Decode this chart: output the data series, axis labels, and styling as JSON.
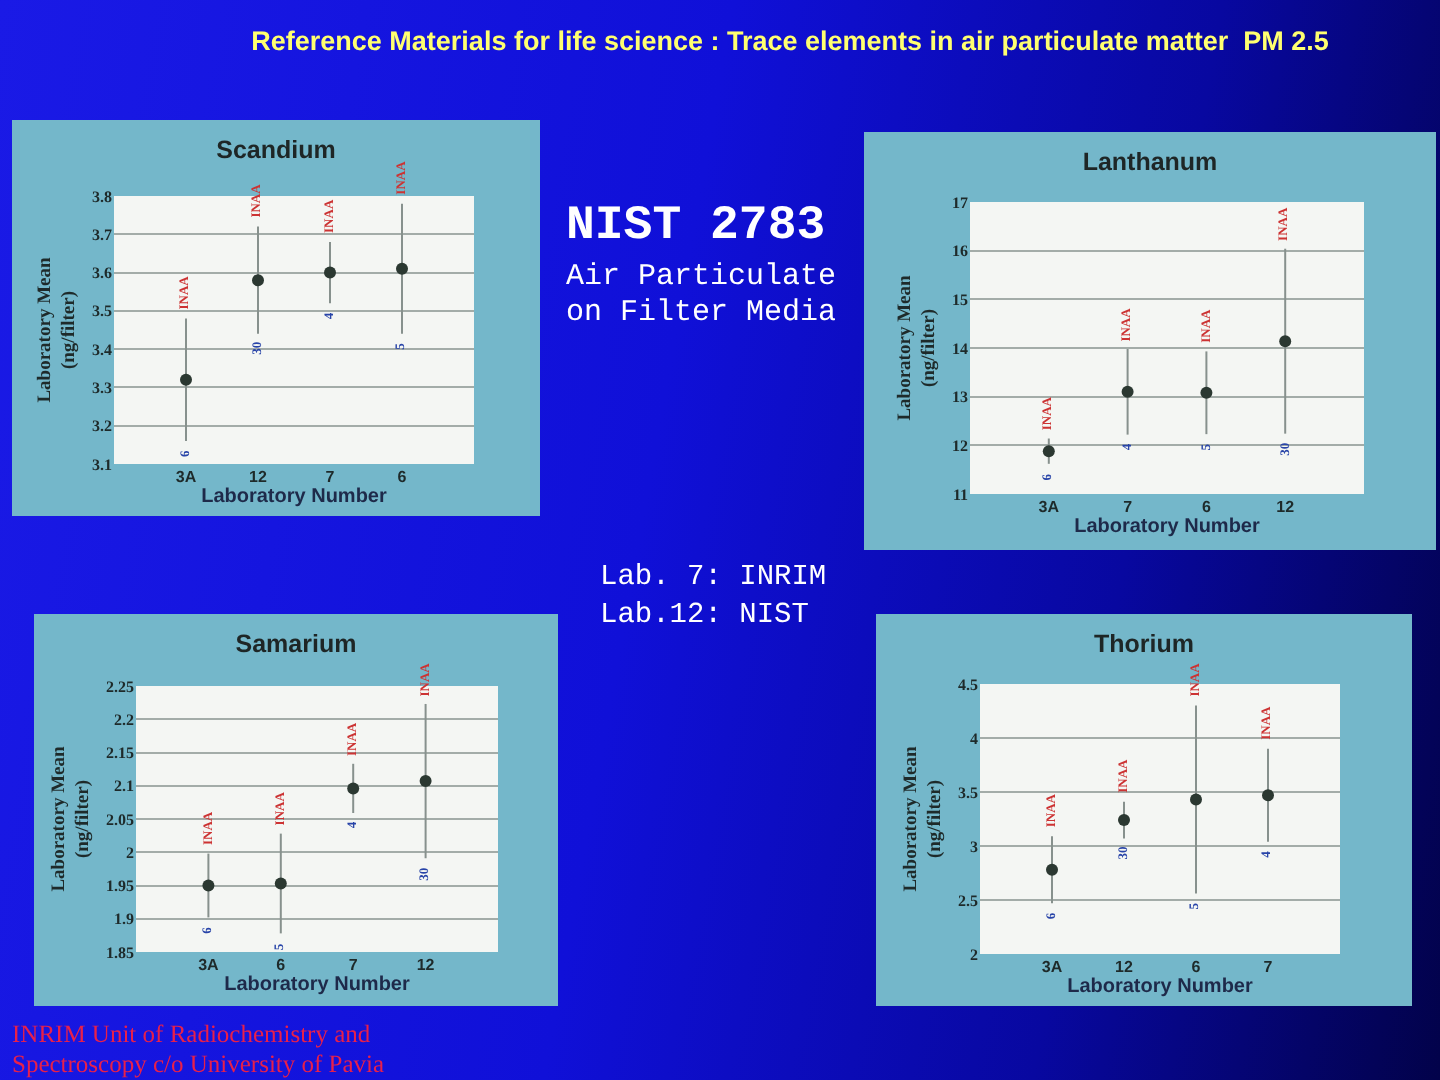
{
  "chart_data": [
    {
      "type": "scatter",
      "title": "Scandium",
      "xlabel": "Laboratory Number",
      "ylabel": "Laboratory Mean\n(ng/filter)",
      "categories": [
        "3A",
        "12",
        "7",
        "6"
      ],
      "values": [
        3.32,
        3.58,
        3.6,
        3.61
      ],
      "errors": [
        0.16,
        0.14,
        0.08,
        0.17
      ],
      "color": "#2b3831",
      "marker": "circle",
      "grid": "y",
      "ylim": [
        3.1,
        3.8
      ],
      "yticks": [
        3.1,
        3.2,
        3.3,
        3.4,
        3.5,
        3.6,
        3.7,
        3.8
      ],
      "annotations": [
        {
          "text": "INAA",
          "x": "3A",
          "y": 3.48
        },
        {
          "text": "INAA",
          "x": "12",
          "y": 3.72
        },
        {
          "text": "INAA",
          "x": "7",
          "y": 3.68
        },
        {
          "text": "INAA",
          "x": "6",
          "y": 3.78
        },
        {
          "text": "6",
          "x": "3A",
          "y": 3.16
        },
        {
          "text": "30",
          "x": "12",
          "y": 3.44
        },
        {
          "text": "4",
          "x": "7",
          "y": 3.52
        },
        {
          "text": "5",
          "x": "6",
          "y": 3.44
        }
      ]
    },
    {
      "type": "scatter",
      "title": "Lanthanum",
      "xlabel": "Laboratory Number",
      "ylabel": "Laboratory Mean\n(ng/filter)",
      "categories": [
        "3A",
        "7",
        "6",
        "12"
      ],
      "values": [
        11.88,
        13.1,
        13.08,
        14.14
      ],
      "errors": [
        0.26,
        0.88,
        0.85,
        1.9
      ],
      "color": "#2b3831",
      "marker": "circle",
      "grid": "y",
      "ylim": [
        11,
        17
      ],
      "yticks": [
        11,
        12,
        13,
        14,
        15,
        16,
        17
      ],
      "annotations": [
        {
          "text": "INAA",
          "x": "3A",
          "y": 12.14
        },
        {
          "text": "INAA",
          "x": "7",
          "y": 13.98
        },
        {
          "text": "INAA",
          "x": "6",
          "y": 13.93
        },
        {
          "text": "INAA",
          "x": "12",
          "y": 16.04
        },
        {
          "text": "6",
          "x": "3A",
          "y": 11.62
        },
        {
          "text": "4",
          "x": "7",
          "y": 12.22
        },
        {
          "text": "5",
          "x": "6",
          "y": 12.23
        },
        {
          "text": "30",
          "x": "12",
          "y": 12.24
        }
      ]
    },
    {
      "type": "scatter",
      "title": "Samarium",
      "xlabel": "Laboratory Number",
      "ylabel": "Laboratory Mean\n(ng/filter)",
      "categories": [
        "3A",
        "6",
        "7",
        "12"
      ],
      "values": [
        1.95,
        1.953,
        2.096,
        2.107
      ],
      "errors": [
        0.048,
        0.075,
        0.037,
        0.116
      ],
      "color": "#2b3831",
      "marker": "circle",
      "grid": "y",
      "ylim": [
        1.85,
        2.25
      ],
      "yticks": [
        1.85,
        1.9,
        1.95,
        2,
        2.05,
        2.1,
        2.15,
        2.2,
        2.25
      ],
      "annotations": [
        {
          "text": "INAA",
          "x": "3A",
          "y": 1.998
        },
        {
          "text": "INAA",
          "x": "6",
          "y": 2.028
        },
        {
          "text": "INAA",
          "x": "7",
          "y": 2.133
        },
        {
          "text": "INAA",
          "x": "12",
          "y": 2.223
        },
        {
          "text": "6",
          "x": "3A",
          "y": 1.902
        },
        {
          "text": "5",
          "x": "6",
          "y": 1.878
        },
        {
          "text": "4",
          "x": "7",
          "y": 2.059
        },
        {
          "text": "30",
          "x": "12",
          "y": 1.991
        }
      ]
    },
    {
      "type": "scatter",
      "title": "Thorium",
      "xlabel": "Laboratory Number",
      "ylabel": "Laboratory Mean\n(ng/filter)",
      "categories": [
        "3A",
        "12",
        "6",
        "7"
      ],
      "values": [
        2.78,
        3.24,
        3.43,
        3.47
      ],
      "errors": [
        0.31,
        0.17,
        0.87,
        0.43
      ],
      "color": "#2b3831",
      "marker": "circle",
      "grid": "y",
      "ylim": [
        2,
        4.5
      ],
      "yticks": [
        2,
        2.5,
        3,
        3.5,
        4,
        4.5
      ],
      "annotations": [
        {
          "text": "INAA",
          "x": "3A",
          "y": 3.09
        },
        {
          "text": "INAA",
          "x": "12",
          "y": 3.41
        },
        {
          "text": "INAA",
          "x": "6",
          "y": 4.3
        },
        {
          "text": "INAA",
          "x": "7",
          "y": 3.9
        },
        {
          "text": "6",
          "x": "3A",
          "y": 2.47
        },
        {
          "text": "30",
          "x": "12",
          "y": 3.07
        },
        {
          "text": "5",
          "x": "6",
          "y": 2.56
        },
        {
          "text": "4",
          "x": "7",
          "y": 3.04
        }
      ]
    },
    {
      "type": "other",
      "title": "Reference Materials for life science : Trace elements in air particulate matter  PM 2.5",
      "annotations": [
        "NIST 2783",
        "Air Particulate on Filter Media",
        "Lab. 7: INRIM",
        "Lab.12: NIST",
        "INRIM Unit of Radiochemistry and Spectroscopy c/o University of Pavia"
      ]
    }
  ]
}
